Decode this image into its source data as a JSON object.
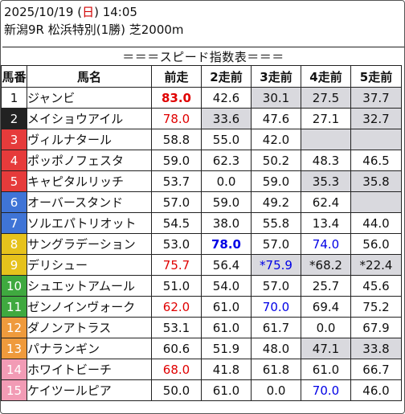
{
  "header": {
    "date_prefix": "2025/10/19 (",
    "weekday": "日",
    "date_suffix": ") 14:05",
    "race_info": "新潟9R 松浜特別(1勝) 芝2000m"
  },
  "title": "＝＝＝スピード指数表＝＝＝",
  "columns": [
    "馬番",
    "馬名",
    "前走",
    "2走前",
    "3走前",
    "4走前",
    "5走前"
  ],
  "colors": {
    "red": "#e00000",
    "blue": "#0000e6",
    "gray_cell": "#d9d9de"
  },
  "rows": [
    {
      "num": "1",
      "name": "ジャンビ",
      "bg": "#ffffff",
      "fg": "#111111",
      "vals": [
        {
          "text": "83.0",
          "color": "red",
          "bold": true
        },
        {
          "text": "42.6"
        },
        {
          "text": "30.1",
          "gray": true
        },
        {
          "text": "27.5",
          "gray": true
        },
        {
          "text": "37.7",
          "gray": true
        }
      ]
    },
    {
      "num": "2",
      "name": "メイショウアイル",
      "bg": "#222222",
      "fg": "#ffffff",
      "vals": [
        {
          "text": "78.0",
          "color": "red"
        },
        {
          "text": "33.6",
          "gray": true
        },
        {
          "text": "47.6"
        },
        {
          "text": "27.1"
        },
        {
          "text": "32.7",
          "gray": true
        }
      ]
    },
    {
      "num": "3",
      "name": "ヴィルナタール",
      "bg": "#e63b3b",
      "fg": "#ffffff",
      "vals": [
        {
          "text": "58.8"
        },
        {
          "text": "55.0"
        },
        {
          "text": "42.0"
        },
        {
          "text": "",
          "gray": true
        },
        {
          "text": "",
          "gray": true
        }
      ]
    },
    {
      "num": "4",
      "name": "ポッポノフェスタ",
      "bg": "#e63b3b",
      "fg": "#ffffff",
      "vals": [
        {
          "text": "59.0"
        },
        {
          "text": "62.3"
        },
        {
          "text": "50.2"
        },
        {
          "text": "48.3"
        },
        {
          "text": "46.5"
        }
      ]
    },
    {
      "num": "5",
      "name": "キャピタルリッチ",
      "bg": "#e63b3b",
      "fg": "#ffffff",
      "vals": [
        {
          "text": "53.7"
        },
        {
          "text": "0.0"
        },
        {
          "text": "59.0"
        },
        {
          "text": "35.3",
          "gray": true
        },
        {
          "text": "35.8",
          "gray": true
        }
      ]
    },
    {
      "num": "6",
      "name": "オーバースタンド",
      "bg": "#3f74d6",
      "fg": "#ffffff",
      "vals": [
        {
          "text": "57.0"
        },
        {
          "text": "59.0"
        },
        {
          "text": "49.2"
        },
        {
          "text": "62.4"
        },
        {
          "text": "",
          "gray": true
        }
      ]
    },
    {
      "num": "7",
      "name": "ソルエパトリオット",
      "bg": "#3f74d6",
      "fg": "#ffffff",
      "vals": [
        {
          "text": "54.5"
        },
        {
          "text": "38.0"
        },
        {
          "text": "55.8"
        },
        {
          "text": "13.4"
        },
        {
          "text": "44.0"
        }
      ]
    },
    {
      "num": "8",
      "name": "サングラデーション",
      "bg": "#e6c21c",
      "fg": "#ffffff",
      "vals": [
        {
          "text": "53.0"
        },
        {
          "text": "78.0",
          "color": "blue",
          "bold": true
        },
        {
          "text": "57.0"
        },
        {
          "text": "74.0",
          "color": "blue"
        },
        {
          "text": "56.0"
        }
      ]
    },
    {
      "num": "9",
      "name": "デリシュー",
      "bg": "#e6c21c",
      "fg": "#ffffff",
      "vals": [
        {
          "text": "75.7",
          "color": "red"
        },
        {
          "text": "56.4"
        },
        {
          "text": "*75.9",
          "color": "blue",
          "gray": true
        },
        {
          "text": "*68.2",
          "gray": true
        },
        {
          "text": "*22.4",
          "gray": true
        }
      ]
    },
    {
      "num": "10",
      "name": "シュエットアムール",
      "bg": "#3fa93f",
      "fg": "#ffffff",
      "vals": [
        {
          "text": "51.0"
        },
        {
          "text": "54.0"
        },
        {
          "text": "57.0"
        },
        {
          "text": "25.7"
        },
        {
          "text": "45.6"
        }
      ]
    },
    {
      "num": "11",
      "name": "ゼンノインヴォーク",
      "bg": "#3fa93f",
      "fg": "#ffffff",
      "vals": [
        {
          "text": "62.0",
          "color": "red"
        },
        {
          "text": "61.0"
        },
        {
          "text": "70.0",
          "color": "blue"
        },
        {
          "text": "69.4"
        },
        {
          "text": "75.2"
        }
      ]
    },
    {
      "num": "12",
      "name": "ダノンアトラス",
      "bg": "#ef9a3c",
      "fg": "#ffffff",
      "vals": [
        {
          "text": "53.1"
        },
        {
          "text": "61.0"
        },
        {
          "text": "61.7"
        },
        {
          "text": "0.0"
        },
        {
          "text": "67.9"
        }
      ]
    },
    {
      "num": "13",
      "name": "パナランギン",
      "bg": "#ef9a3c",
      "fg": "#ffffff",
      "vals": [
        {
          "text": "60.6"
        },
        {
          "text": "51.9"
        },
        {
          "text": "48.0"
        },
        {
          "text": "47.1",
          "gray": true
        },
        {
          "text": "33.8",
          "gray": true
        }
      ]
    },
    {
      "num": "14",
      "name": "ホワイトビーチ",
      "bg": "#f29bb5",
      "fg": "#ffffff",
      "vals": [
        {
          "text": "68.0",
          "color": "red"
        },
        {
          "text": "41.8"
        },
        {
          "text": "61.8"
        },
        {
          "text": "61.0"
        },
        {
          "text": "66.7"
        }
      ]
    },
    {
      "num": "15",
      "name": "ケイツールピア",
      "bg": "#f29bb5",
      "fg": "#ffffff",
      "vals": [
        {
          "text": "50.0"
        },
        {
          "text": "61.0"
        },
        {
          "text": "0.0"
        },
        {
          "text": "70.0",
          "color": "blue"
        },
        {
          "text": "46.0"
        }
      ]
    }
  ]
}
